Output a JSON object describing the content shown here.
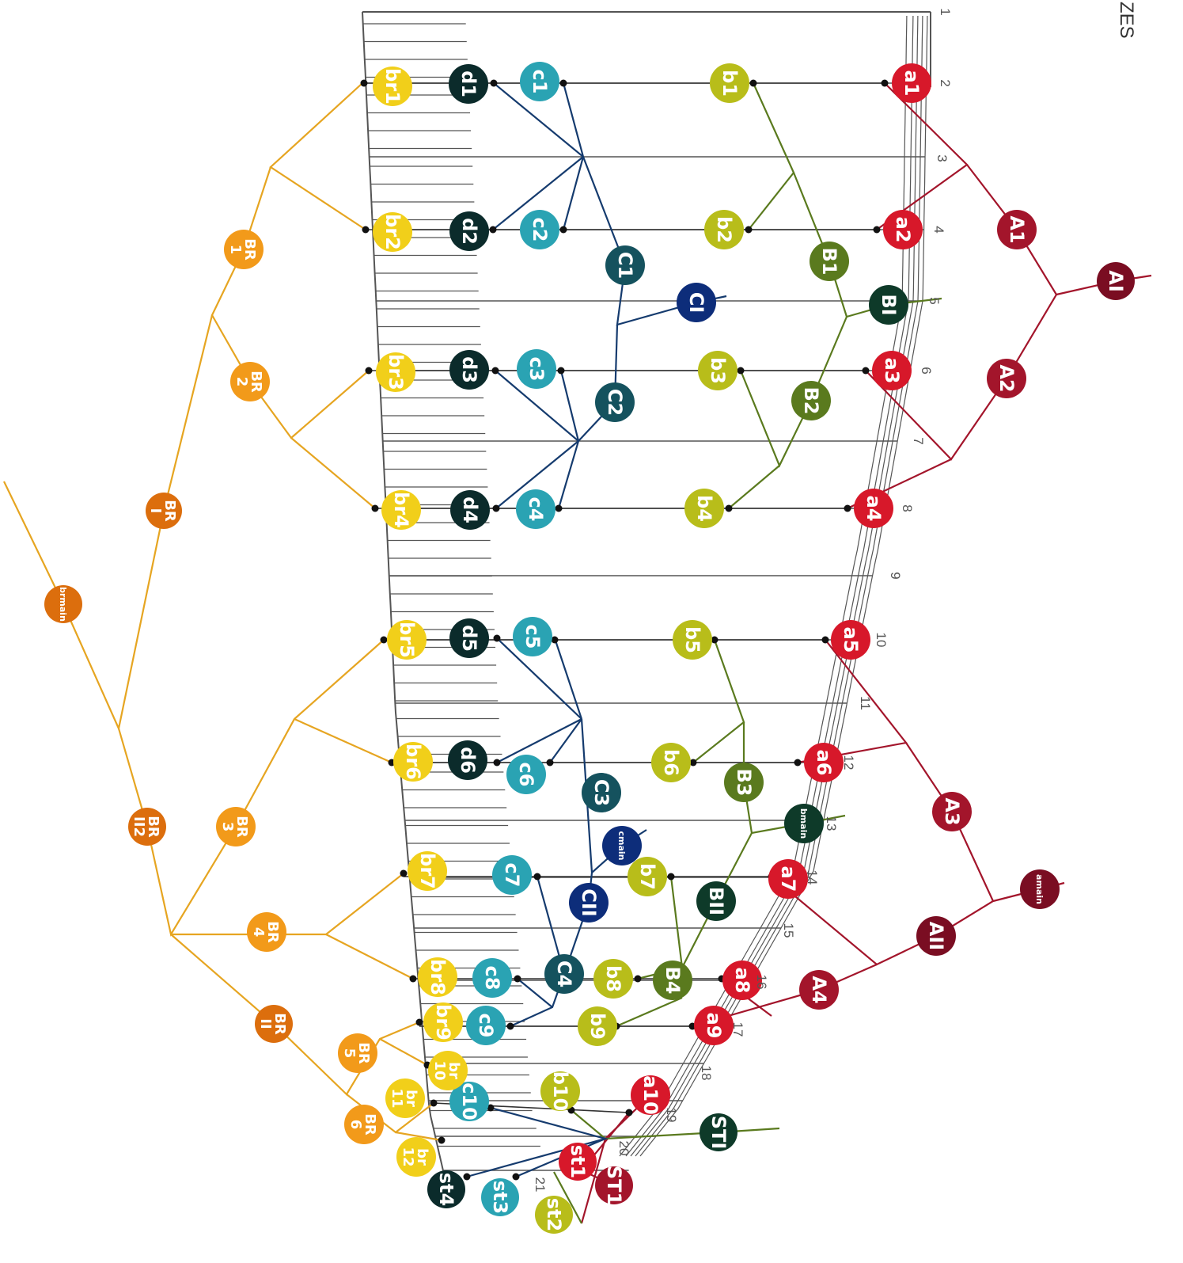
{
  "header": {
    "corner_text": "ZES"
  },
  "colors": {
    "red": "#d7182a",
    "darkred": "#a3152b",
    "maroon": "#7a0d22",
    "olive": "#b8bd1a",
    "green": "#5a7a1e",
    "darkgreen": "#0e3a29",
    "teal": "#2aa3b3",
    "tealdark": "#15525e",
    "navy": "#0d2d7a",
    "black": "#0b2b2b",
    "yellow": "#f1cf1a",
    "orange": "#f29a1a",
    "darkorange": "#dc6e0d",
    "lineRed": "#a3152b",
    "lineGreen": "#5a7a1e",
    "lineNavy": "#153b6e",
    "lineOrange": "#e6a521",
    "lineGray": "#555555"
  },
  "row_numbers": [
    "1",
    "2",
    "3",
    "4",
    "5",
    "6",
    "7",
    "8",
    "9",
    "10",
    "11",
    "12",
    "13",
    "14",
    "15",
    "16",
    "17",
    "18",
    "19",
    "20",
    "21"
  ],
  "nodes": [
    {
      "id": "a1",
      "label": "a1",
      "color": "red"
    },
    {
      "id": "a2",
      "label": "a2",
      "color": "red"
    },
    {
      "id": "a3",
      "label": "a3",
      "color": "red"
    },
    {
      "id": "a4",
      "label": "a4",
      "color": "red"
    },
    {
      "id": "a5",
      "label": "a5",
      "color": "red"
    },
    {
      "id": "a6",
      "label": "a6",
      "color": "red"
    },
    {
      "id": "a7",
      "label": "a7",
      "color": "red"
    },
    {
      "id": "a8",
      "label": "a8",
      "color": "red"
    },
    {
      "id": "a9",
      "label": "a9",
      "color": "red"
    },
    {
      "id": "a10",
      "label": "a10",
      "color": "red"
    },
    {
      "id": "A1",
      "label": "A1",
      "color": "darkred"
    },
    {
      "id": "A2",
      "label": "A2",
      "color": "darkred"
    },
    {
      "id": "A3",
      "label": "A3",
      "color": "darkred"
    },
    {
      "id": "A4",
      "label": "A4",
      "color": "darkred"
    },
    {
      "id": "AI",
      "label": "AI",
      "color": "maroon"
    },
    {
      "id": "AII",
      "label": "AII",
      "color": "maroon"
    },
    {
      "id": "amain",
      "label": "amain",
      "color": "maroon"
    },
    {
      "id": "b1",
      "label": "b1",
      "color": "olive"
    },
    {
      "id": "b2",
      "label": "b2",
      "color": "olive"
    },
    {
      "id": "b3",
      "label": "b3",
      "color": "olive"
    },
    {
      "id": "b4",
      "label": "b4",
      "color": "olive"
    },
    {
      "id": "b5",
      "label": "b5",
      "color": "olive"
    },
    {
      "id": "b6",
      "label": "b6",
      "color": "olive"
    },
    {
      "id": "b7",
      "label": "b7",
      "color": "olive"
    },
    {
      "id": "b8",
      "label": "b8",
      "color": "olive"
    },
    {
      "id": "b9",
      "label": "b9",
      "color": "olive"
    },
    {
      "id": "b10",
      "label": "b10",
      "color": "olive"
    },
    {
      "id": "B1",
      "label": "B1",
      "color": "green"
    },
    {
      "id": "B2",
      "label": "B2",
      "color": "green"
    },
    {
      "id": "B3",
      "label": "B3",
      "color": "green"
    },
    {
      "id": "B4",
      "label": "B4",
      "color": "green"
    },
    {
      "id": "BI",
      "label": "BI",
      "color": "darkgreen"
    },
    {
      "id": "BII",
      "label": "BII",
      "color": "darkgreen"
    },
    {
      "id": "bmain",
      "label": "bmain",
      "color": "darkgreen"
    },
    {
      "id": "c1",
      "label": "c1",
      "color": "teal"
    },
    {
      "id": "c2",
      "label": "c2",
      "color": "teal"
    },
    {
      "id": "c3",
      "label": "c3",
      "color": "teal"
    },
    {
      "id": "c4",
      "label": "c4",
      "color": "teal"
    },
    {
      "id": "c5",
      "label": "c5",
      "color": "teal"
    },
    {
      "id": "c6",
      "label": "c6",
      "color": "teal"
    },
    {
      "id": "c7",
      "label": "c7",
      "color": "teal"
    },
    {
      "id": "c8",
      "label": "c8",
      "color": "teal"
    },
    {
      "id": "c9",
      "label": "c9",
      "color": "teal"
    },
    {
      "id": "c10",
      "label": "c10",
      "color": "teal"
    },
    {
      "id": "C1",
      "label": "C1",
      "color": "tealdark"
    },
    {
      "id": "C2",
      "label": "C2",
      "color": "tealdark"
    },
    {
      "id": "C3",
      "label": "C3",
      "color": "tealdark"
    },
    {
      "id": "C4",
      "label": "C4",
      "color": "tealdark"
    },
    {
      "id": "CI",
      "label": "CI",
      "color": "navy"
    },
    {
      "id": "CII",
      "label": "CII",
      "color": "navy"
    },
    {
      "id": "cmain",
      "label": "cmain",
      "color": "navy"
    },
    {
      "id": "d1",
      "label": "d1",
      "color": "black"
    },
    {
      "id": "d2",
      "label": "d2",
      "color": "black"
    },
    {
      "id": "d3",
      "label": "d3",
      "color": "black"
    },
    {
      "id": "d4",
      "label": "d4",
      "color": "black"
    },
    {
      "id": "d5",
      "label": "d5",
      "color": "black"
    },
    {
      "id": "d6",
      "label": "d6",
      "color": "black"
    },
    {
      "id": "br1",
      "label": "br1",
      "color": "yellow"
    },
    {
      "id": "br2",
      "label": "br2",
      "color": "yellow"
    },
    {
      "id": "br3",
      "label": "br3",
      "color": "yellow"
    },
    {
      "id": "br4",
      "label": "br4",
      "color": "yellow"
    },
    {
      "id": "br5",
      "label": "br5",
      "color": "yellow"
    },
    {
      "id": "br6",
      "label": "br6",
      "color": "yellow"
    },
    {
      "id": "br7",
      "label": "br7",
      "color": "yellow"
    },
    {
      "id": "br8",
      "label": "br8",
      "color": "yellow"
    },
    {
      "id": "br9",
      "label": "br9",
      "color": "yellow"
    },
    {
      "id": "br10",
      "label": "br 10",
      "color": "yellow"
    },
    {
      "id": "br11",
      "label": "br 11",
      "color": "yellow"
    },
    {
      "id": "br12",
      "label": "br 12",
      "color": "yellow"
    },
    {
      "id": "BR1",
      "label": "BR 1",
      "color": "orange"
    },
    {
      "id": "BR2",
      "label": "BR 2",
      "color": "orange"
    },
    {
      "id": "BR3",
      "label": "BR 3",
      "color": "orange"
    },
    {
      "id": "BR4",
      "label": "BR 4",
      "color": "orange"
    },
    {
      "id": "BR5",
      "label": "BR 5",
      "color": "orange"
    },
    {
      "id": "BR6",
      "label": "BR 6",
      "color": "orange"
    },
    {
      "id": "BRI",
      "label": "BR I",
      "color": "darkorange"
    },
    {
      "id": "BRII",
      "label": "BR II",
      "color": "darkorange"
    },
    {
      "id": "BRII2",
      "label": "BR II2",
      "color": "darkorange"
    },
    {
      "id": "brmain",
      "label": "brmain",
      "color": "darkorange"
    },
    {
      "id": "st1",
      "label": "st1",
      "color": "red"
    },
    {
      "id": "ST1",
      "label": "ST1",
      "color": "darkred"
    },
    {
      "id": "st2",
      "label": "st2",
      "color": "olive"
    },
    {
      "id": "STI",
      "label": "STI",
      "color": "darkgreen"
    },
    {
      "id": "st3",
      "label": "st3",
      "color": "teal"
    },
    {
      "id": "st4",
      "label": "st4",
      "color": "black"
    }
  ]
}
